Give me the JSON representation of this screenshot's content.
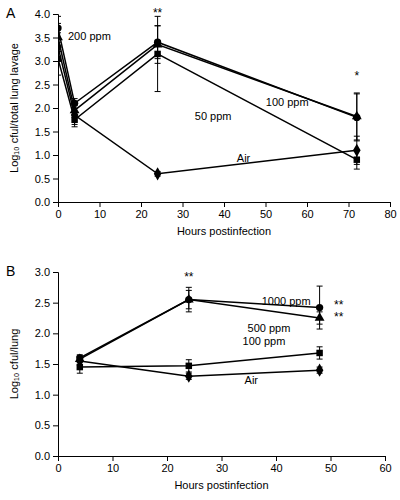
{
  "chart_data": [
    {
      "type": "line",
      "title": "A",
      "x_label": "Hours postinfection",
      "y_label": "Log₁₀ cful/total lung lavage",
      "x": [
        0,
        4,
        24,
        72
      ],
      "xlim": [
        0,
        80
      ],
      "xticks": [
        0,
        10,
        20,
        30,
        40,
        50,
        60,
        70,
        80
      ],
      "ylim": [
        0,
        4
      ],
      "yticks": [
        {
          "value": 0,
          "label": "0.0"
        },
        0.5,
        {
          "value": 1,
          "label": "1.0"
        },
        1.5,
        {
          "value": 2,
          "label": "2.0"
        },
        2.5,
        {
          "value": 3,
          "label": "3.0"
        },
        3.5,
        {
          "value": 4,
          "label": "4.0"
        }
      ],
      "series": [
        {
          "name": "Air",
          "color": "#000000",
          "marker": "diamond",
          "values": [
            3.3,
            1.85,
            0.6,
            1.1
          ],
          "errors": [
            0.3,
            0.2,
            0.05,
            0.3
          ]
        },
        {
          "name": "50 ppm",
          "color": "#000000",
          "marker": "square",
          "values": [
            3.05,
            1.75,
            3.15,
            0.9
          ],
          "errors": [
            0.35,
            0.15,
            0.8,
            0.2
          ]
        },
        {
          "name": "100 ppm",
          "color": "#000000",
          "marker": "triangle",
          "values": [
            3.5,
            1.95,
            3.35,
            1.82
          ],
          "errors": [
            0.3,
            0.15,
            0.4,
            0.5
          ]
        },
        {
          "name": "200 ppm",
          "color": "#000000",
          "marker": "circle",
          "values": [
            3.7,
            2.1,
            3.4,
            1.8
          ],
          "errors": [
            0.25,
            0.1,
            0.35,
            0.5
          ]
        }
      ],
      "annotations": [
        {
          "text": "**",
          "x": 24,
          "y": 3.93
        },
        {
          "text": "*",
          "x": 72,
          "y": 2.6
        }
      ]
    },
    {
      "type": "line",
      "title": "B",
      "x_label": "Hours postinfection",
      "y_label": "Log₁₀ cful/lung",
      "x": [
        4,
        24,
        48
      ],
      "xlim": [
        0,
        60
      ],
      "xticks": [
        0,
        10,
        20,
        30,
        40,
        50,
        60
      ],
      "ylim": [
        0,
        3
      ],
      "yticks": [
        {
          "value": 0,
          "label": "0.0"
        },
        0.5,
        {
          "value": 1,
          "label": "1.0"
        },
        1.5,
        {
          "value": 2,
          "label": "2.0"
        },
        2.5,
        {
          "value": 3,
          "label": "3.0"
        }
      ],
      "series": [
        {
          "name": "Air",
          "color": "#000000",
          "marker": "diamond",
          "values": [
            1.55,
            1.3,
            1.4
          ],
          "errors": [
            0.07,
            0.05,
            0.05
          ]
        },
        {
          "name": "100 ppm",
          "color": "#000000",
          "marker": "square",
          "values": [
            1.45,
            1.47,
            1.68
          ],
          "errors": [
            0.1,
            0.1,
            0.1
          ]
        },
        {
          "name": "500 ppm",
          "color": "#000000",
          "marker": "triangle",
          "values": [
            1.58,
            2.55,
            2.25
          ],
          "errors": [
            0.05,
            0.15,
            0.1
          ]
        },
        {
          "name": "1000 ppm",
          "color": "#000000",
          "marker": "circle",
          "values": [
            1.6,
            2.55,
            2.42
          ],
          "errors": [
            0.05,
            0.2,
            0.35
          ]
        }
      ],
      "annotations": [
        {
          "text": "**",
          "x": 24,
          "y": 2.85
        },
        {
          "text": "**",
          "x": 51.5,
          "y": 2.39
        },
        {
          "text": "**",
          "x": 51.5,
          "y": 2.2
        }
      ]
    }
  ]
}
